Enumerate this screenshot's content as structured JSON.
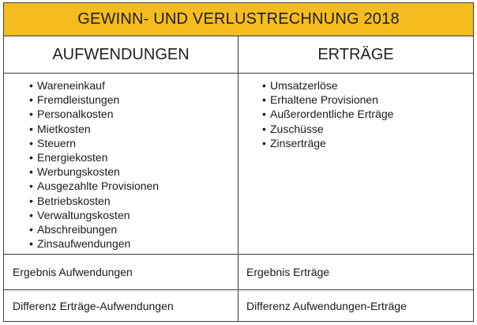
{
  "title": "GEWINN- UND VERLUSTRECHNUNG 2018",
  "columns": {
    "left_header": "AUFWENDUNGEN",
    "right_header": "ERTRÄGE"
  },
  "aufwendungen": [
    "Wareneinkauf",
    "Fremdleistungen",
    "Personalkosten",
    "Mietkosten",
    "Steuern",
    "Energiekosten",
    "Werbungskosten",
    "Ausgezahlte Provisionen",
    "Betriebskosten",
    "Verwaltungskosten",
    "Abschreibungen",
    "Zinsaufwendungen"
  ],
  "ertraege": [
    "Umsatzerlöse",
    "Erhaltene Provisionen",
    "Außerordentliche Erträge",
    "Zuschüsse",
    "Zinserträge"
  ],
  "result_row": {
    "left": "Ergebnis Aufwendungen",
    "right": "Ergebnis Erträge"
  },
  "difference_row": {
    "left": "Differenz Erträge-Aufwendungen",
    "right": "Differenz Aufwendungen-Erträge"
  },
  "bullet_symbol": "•",
  "colors": {
    "title_background": "#f5bc1f",
    "border": "#3d3d3d"
  }
}
